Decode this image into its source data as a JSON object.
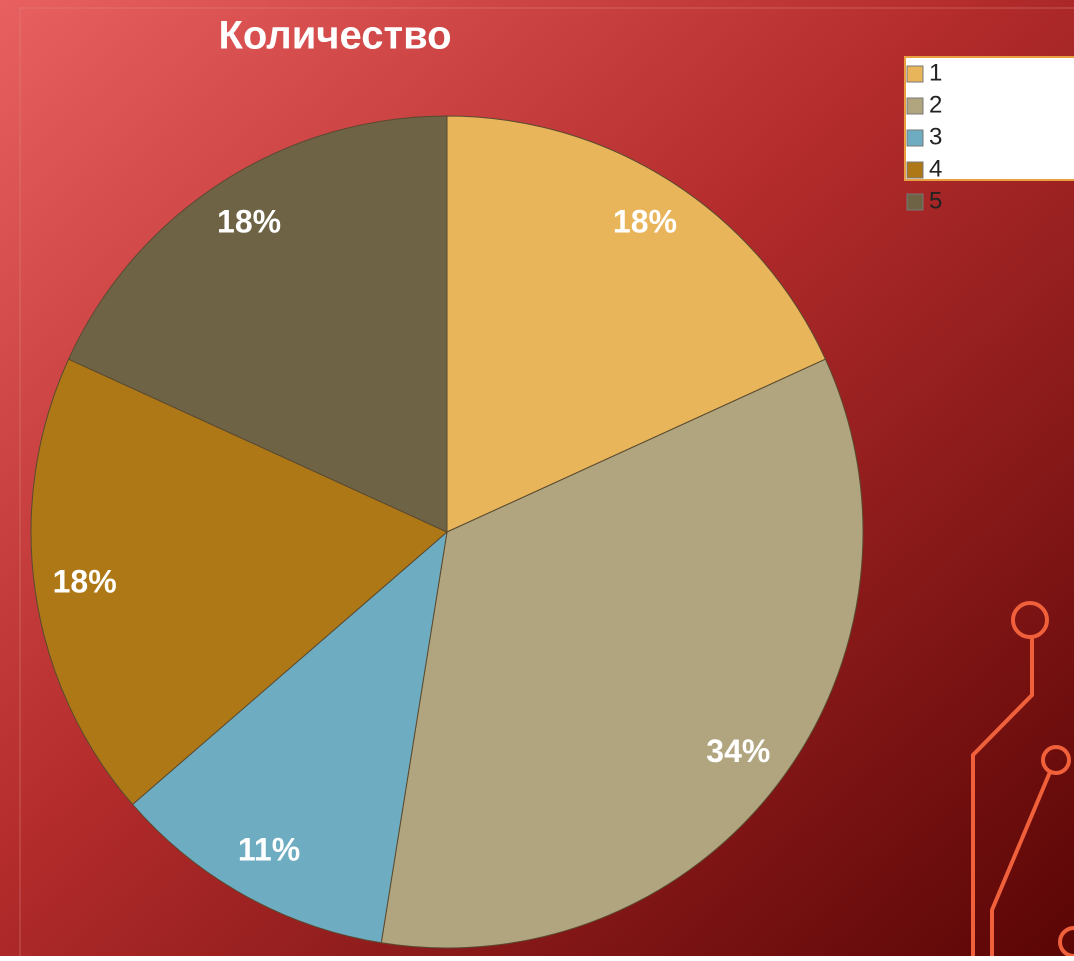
{
  "chart_data": {
    "type": "pie",
    "title": "Количество",
    "categories": [
      "1",
      "2",
      "3",
      "4",
      "5"
    ],
    "values": [
      18,
      34,
      11,
      18,
      18
    ],
    "value_labels": [
      "18%",
      "34%",
      "11%",
      "18%",
      "18%"
    ],
    "colors": [
      "#e8b55a",
      "#b0a57e",
      "#6eacc2",
      "#ae7816",
      "#6f6346"
    ]
  }
}
